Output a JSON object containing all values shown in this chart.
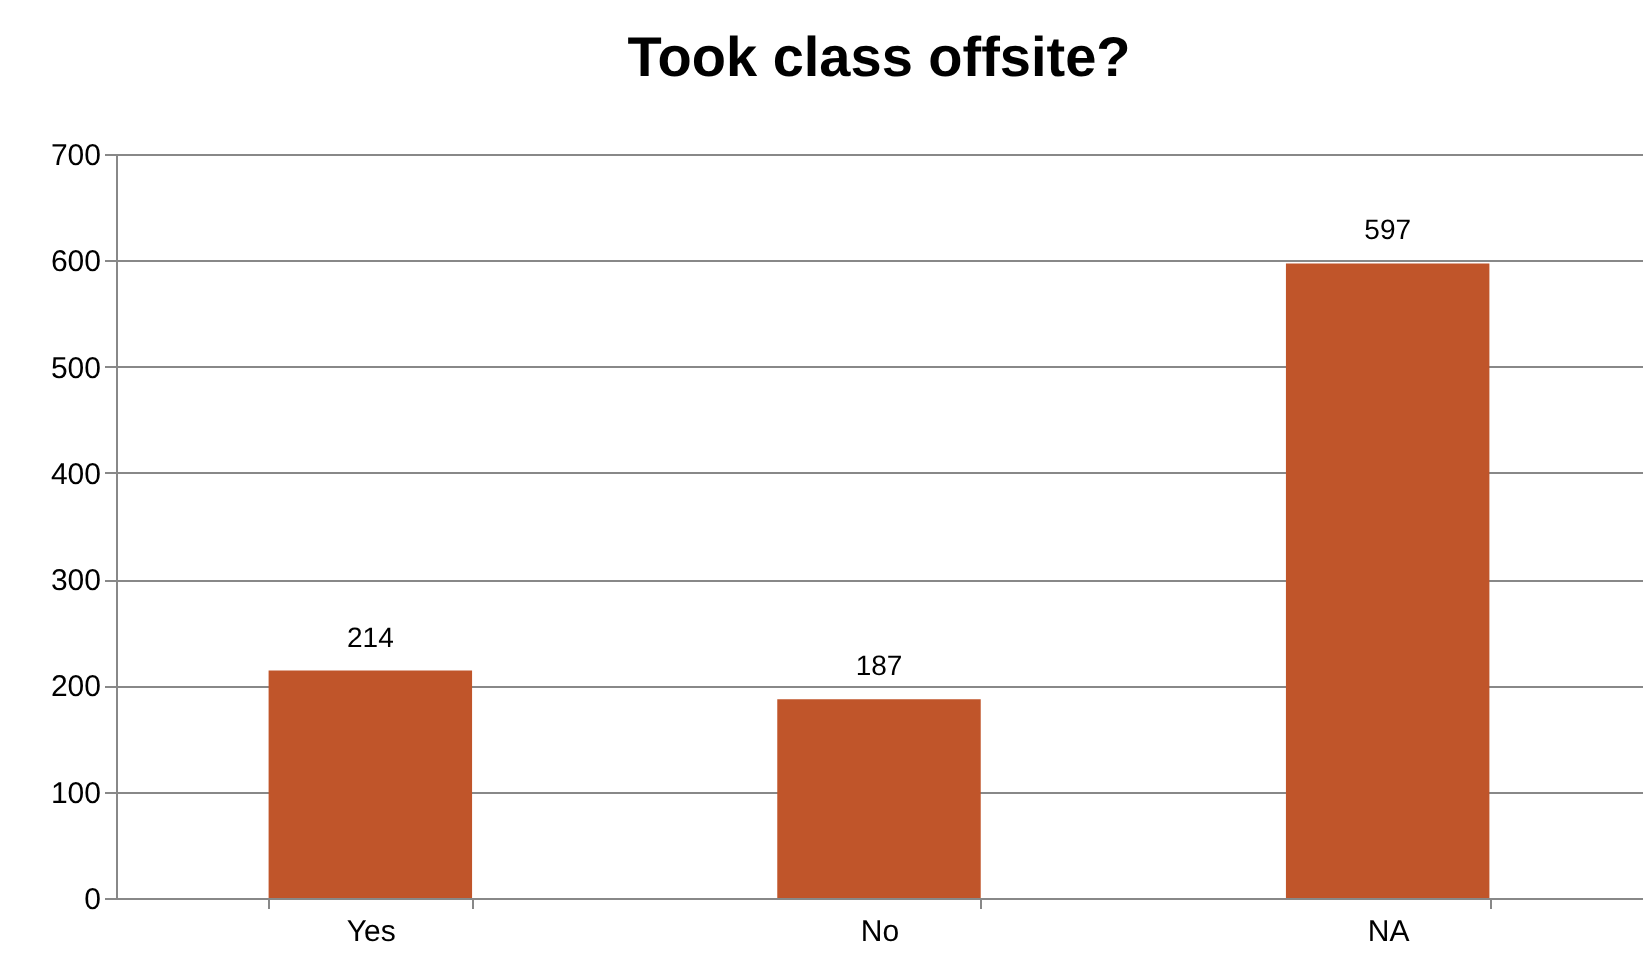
{
  "chart_data": {
    "type": "bar",
    "title": "Took class offsite?",
    "categories": [
      "Yes",
      "No",
      "NA"
    ],
    "values": [
      214,
      187,
      597
    ],
    "color": "#c0552a",
    "ylim": [
      0,
      700
    ],
    "yticks": [
      0,
      100,
      200,
      300,
      400,
      500,
      600,
      700
    ],
    "grid": "y",
    "data_labels": true
  }
}
